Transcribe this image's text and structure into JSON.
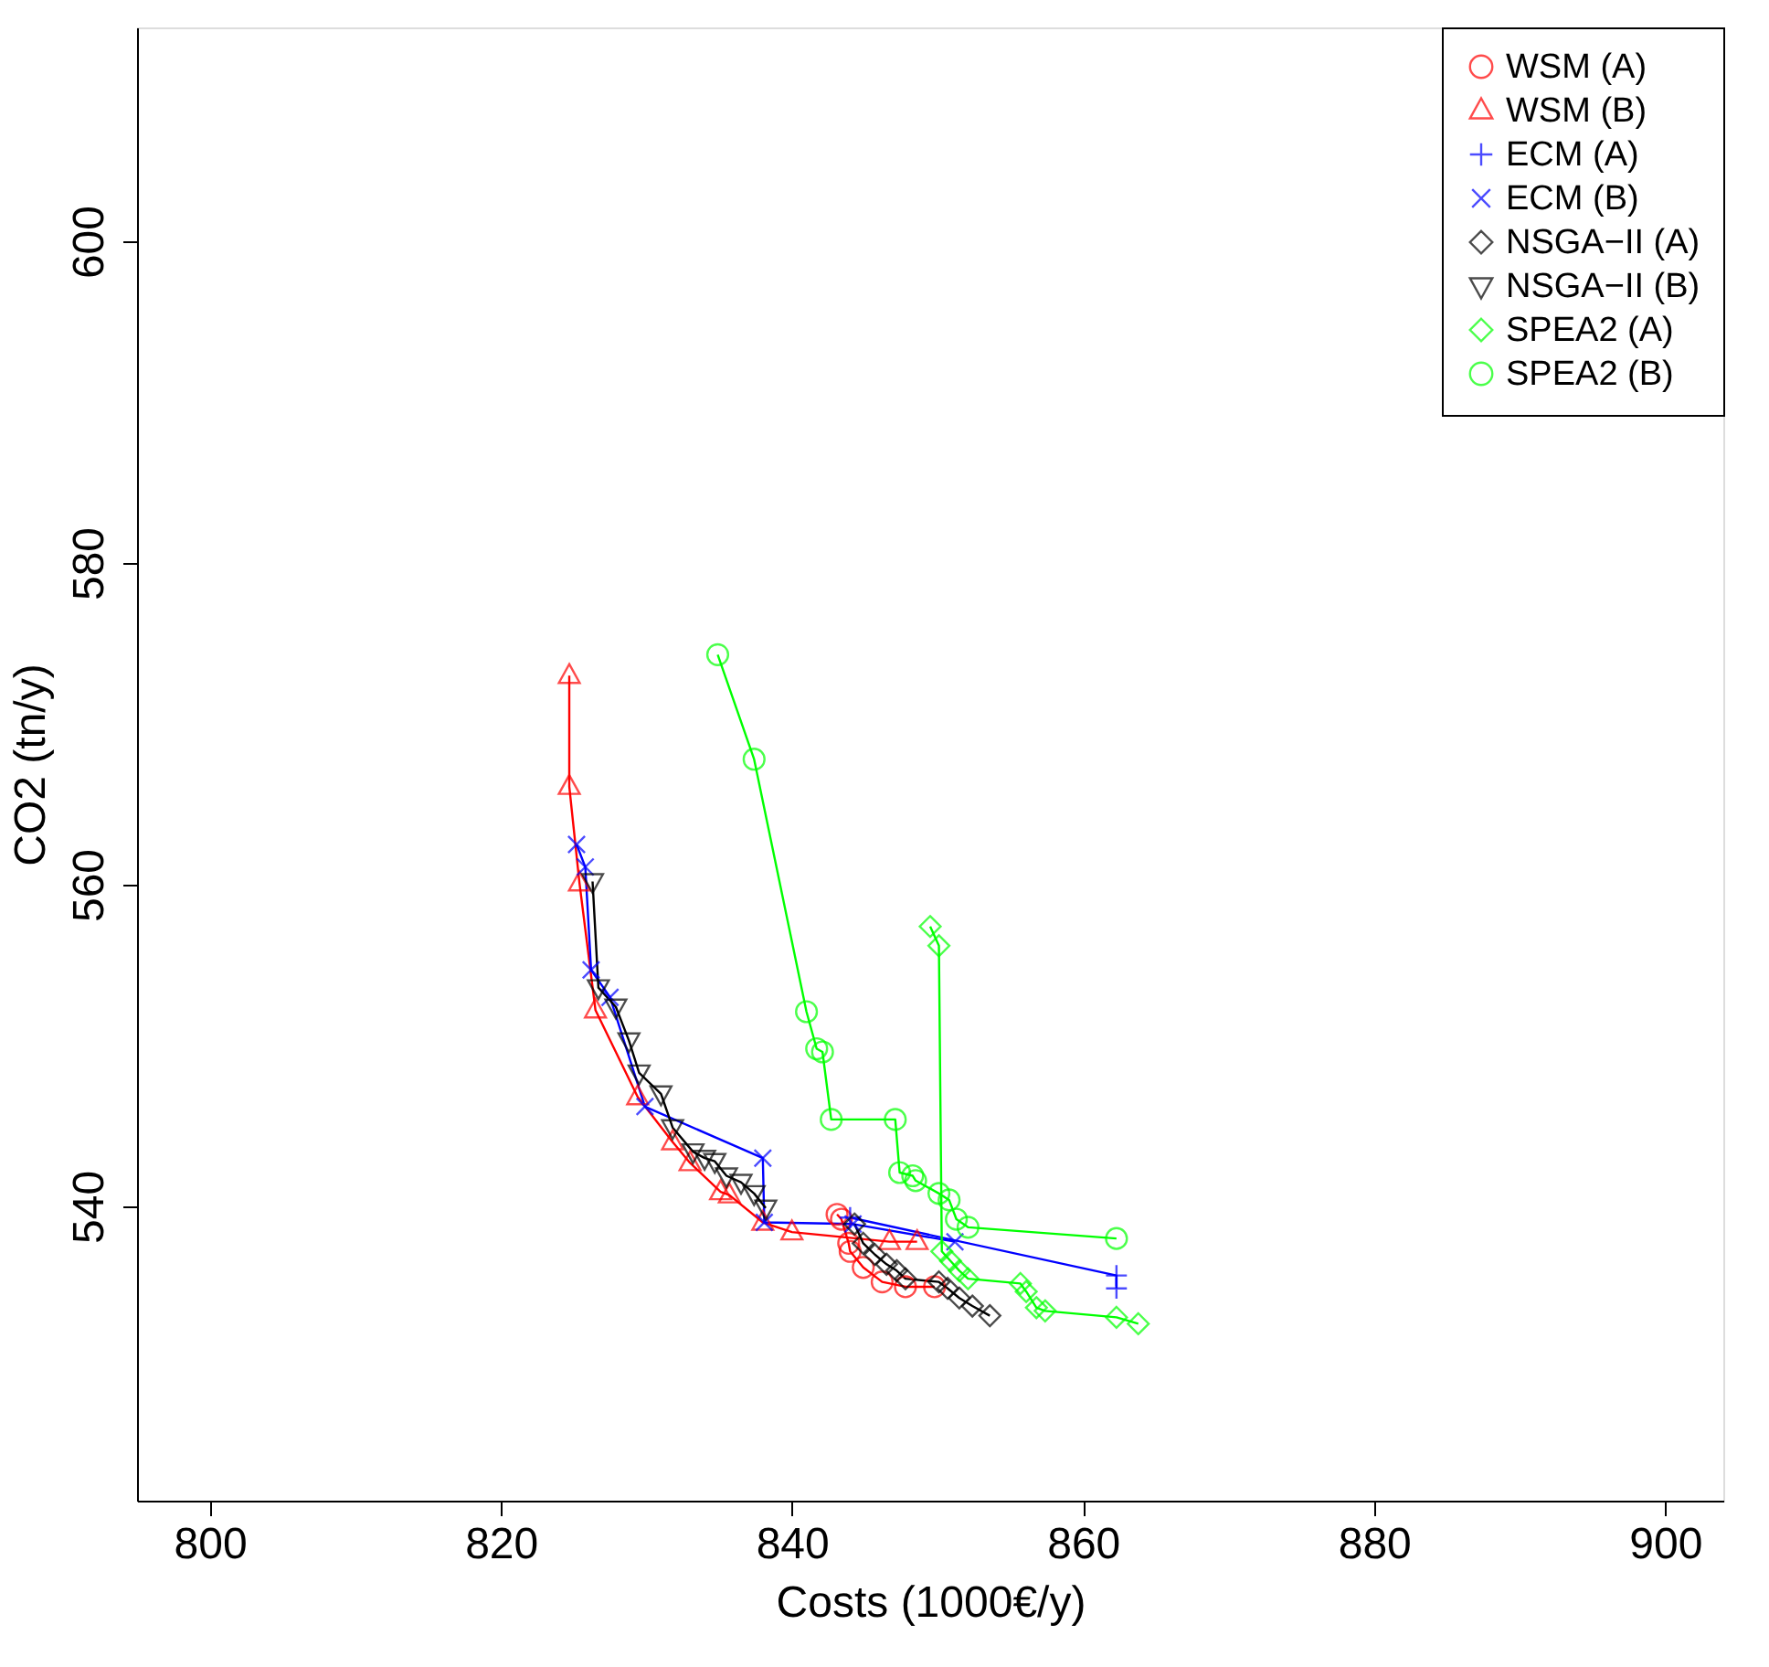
{
  "chart_data": {
    "type": "line",
    "xlabel": "Costs (1000€/y)",
    "ylabel": "CO2 (tn/y)",
    "xlim": [
      795,
      904
    ],
    "ylim": [
      521.7,
      613.3
    ],
    "xticks": [
      800,
      820,
      840,
      860,
      880,
      900
    ],
    "yticks": [
      540,
      560,
      580,
      600
    ],
    "grid": false,
    "legend": "top right",
    "line_style": "solid",
    "series": [
      {
        "name": "WSM (A)",
        "color": "#ff0000",
        "marker": "circle",
        "x": [
          843.1,
          843.4,
          843.9,
          844.0,
          844.9,
          846.2,
          847.8,
          849.8
        ],
        "values": [
          539.5,
          539.2,
          537.7,
          537.2,
          536.2,
          535.3,
          535.0,
          535.0
        ]
      },
      {
        "name": "WSM (B)",
        "color": "#ff0000",
        "marker": "triangle",
        "x": [
          824.7,
          824.7,
          825.4,
          826.5,
          829.4,
          831.8,
          833.0,
          835.1,
          835.7,
          838.0,
          840.0,
          846.7,
          848.6
        ],
        "values": [
          573.0,
          566.1,
          560.1,
          552.2,
          546.8,
          544.0,
          542.7,
          540.9,
          540.7,
          539.0,
          538.4,
          537.8,
          537.8
        ]
      },
      {
        "name": "ECM (A)",
        "color": "#0000ff",
        "marker": "plus",
        "x": [
          844.0,
          862.3,
          862.3
        ],
        "values": [
          539.3,
          535.7,
          534.9
        ]
      },
      {
        "name": "ECM (B)",
        "color": "#0000ff",
        "marker": "cross",
        "x": [
          825.2,
          825.8,
          826.2,
          827.5,
          829.9,
          838.0,
          838.1,
          844.2,
          851.2
        ],
        "values": [
          562.5,
          561.1,
          554.7,
          553.0,
          546.2,
          543.0,
          539.0,
          538.9,
          537.8
        ]
      },
      {
        "name": "NSGA−II (A)",
        "color": "#000000",
        "marker": "diamond",
        "x": [
          844.3,
          844.9,
          845.7,
          846.5,
          847.2,
          847.8,
          850.1,
          850.7,
          851.5,
          852.4,
          853.6
        ],
        "values": [
          538.9,
          537.7,
          537.0,
          536.4,
          536.0,
          535.5,
          535.3,
          534.9,
          534.3,
          533.8,
          533.2
        ]
      },
      {
        "name": "NSGA−II (B)",
        "color": "#000000",
        "marker": "triangle-down",
        "x": [
          826.3,
          826.7,
          827.9,
          828.8,
          829.5,
          831.0,
          831.8,
          833.2,
          834.0,
          834.7,
          835.5,
          836.5,
          837.4,
          838.2
        ],
        "values": [
          560.2,
          553.6,
          552.4,
          550.3,
          548.3,
          547.0,
          544.9,
          543.4,
          543.0,
          542.8,
          541.9,
          541.5,
          540.8,
          539.9
        ]
      },
      {
        "name": "SPEA2 (A)",
        "color": "#00ff00",
        "marker": "diamond",
        "x": [
          849.5,
          850.1,
          850.3,
          850.9,
          851.5,
          852.1,
          855.7,
          856.1,
          856.8,
          857.4,
          862.3,
          863.8
        ],
        "values": [
          557.4,
          556.2,
          537.2,
          536.6,
          536.0,
          535.5,
          535.2,
          534.7,
          533.7,
          533.5,
          533.1,
          532.7
        ]
      },
      {
        "name": "SPEA2 (B)",
        "color": "#00ff00",
        "marker": "circle",
        "x": [
          834.9,
          837.4,
          841.0,
          841.7,
          842.1,
          842.7,
          847.1,
          847.4,
          848.3,
          848.5,
          850.1,
          850.8,
          851.3,
          852.1,
          862.3
        ],
        "values": [
          574.3,
          567.8,
          552.1,
          549.8,
          549.6,
          545.4,
          545.4,
          542.1,
          541.9,
          541.6,
          540.8,
          540.4,
          539.2,
          538.7,
          538.0
        ]
      }
    ]
  }
}
